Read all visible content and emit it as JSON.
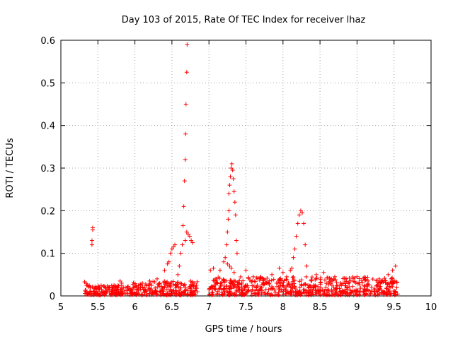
{
  "chart_data": {
    "type": "scatter",
    "title": "Day 103 of 2015, Rate Of TEC Index for receiver lhaz",
    "xlabel": "GPS time / hours",
    "ylabel": "ROTI / TECUs",
    "xlim": [
      5,
      10
    ],
    "ylim": [
      0,
      0.6
    ],
    "grid": true,
    "marker": "plus",
    "marker_color": "#ff0000",
    "x_ticks": [
      "5",
      "5.5",
      "6",
      "6.5",
      "7",
      "7.5",
      "8",
      "8.5",
      "9",
      "9.5",
      "10"
    ],
    "y_ticks": [
      "0",
      "0.1",
      "0.2",
      "0.3",
      "0.4",
      "0.5",
      "0.6"
    ],
    "features": [
      {
        "name": "spike",
        "x": 5.42,
        "values": [
          0.12,
          0.13,
          0.155,
          0.16
        ]
      },
      {
        "name": "spike",
        "x": 6.7,
        "values": [
          0.21,
          0.27,
          0.32,
          0.38,
          0.45,
          0.525,
          0.59
        ]
      },
      {
        "name": "peak",
        "x": 6.5,
        "values": [
          0.08,
          0.1,
          0.115
        ]
      },
      {
        "name": "peak",
        "x": 6.72,
        "values": [
          0.13,
          0.145,
          0.15,
          0.14
        ]
      },
      {
        "name": "peak",
        "x": 7.3,
        "values": [
          0.15,
          0.2,
          0.24,
          0.27,
          0.3,
          0.31
        ]
      },
      {
        "name": "peak",
        "x": 8.23,
        "values": [
          0.12,
          0.16,
          0.19,
          0.2
        ]
      }
    ],
    "series": [
      {
        "name": "ROTI",
        "points": [
          [
            5.32,
            0.033
          ],
          [
            5.34,
            0.03
          ],
          [
            5.36,
            0.025
          ],
          [
            5.4,
            0.02
          ],
          [
            5.42,
            0.12
          ],
          [
            5.42,
            0.13
          ],
          [
            5.43,
            0.155
          ],
          [
            5.43,
            0.16
          ],
          [
            5.55,
            0.015
          ],
          [
            5.7,
            0.02
          ],
          [
            5.8,
            0.035
          ],
          [
            5.82,
            0.03
          ],
          [
            6.1,
            0.03
          ],
          [
            6.2,
            0.035
          ],
          [
            6.3,
            0.04
          ],
          [
            6.4,
            0.06
          ],
          [
            6.44,
            0.075
          ],
          [
            6.46,
            0.08
          ],
          [
            6.48,
            0.1
          ],
          [
            6.5,
            0.11
          ],
          [
            6.52,
            0.115
          ],
          [
            6.54,
            0.12
          ],
          [
            6.58,
            0.05
          ],
          [
            6.6,
            0.07
          ],
          [
            6.62,
            0.1
          ],
          [
            6.64,
            0.12
          ],
          [
            6.65,
            0.165
          ],
          [
            6.66,
            0.21
          ],
          [
            6.67,
            0.27
          ],
          [
            6.68,
            0.32
          ],
          [
            6.685,
            0.38
          ],
          [
            6.69,
            0.45
          ],
          [
            6.7,
            0.525
          ],
          [
            6.705,
            0.59
          ],
          [
            6.68,
            0.13
          ],
          [
            6.7,
            0.15
          ],
          [
            6.72,
            0.145
          ],
          [
            6.74,
            0.14
          ],
          [
            6.76,
            0.13
          ],
          [
            6.78,
            0.125
          ],
          [
            6.8,
            0.03
          ],
          [
            6.83,
            0.025
          ],
          [
            7.02,
            0.06
          ],
          [
            7.06,
            0.065
          ],
          [
            7.1,
            0.04
          ],
          [
            7.15,
            0.06
          ],
          [
            7.2,
            0.08
          ],
          [
            7.22,
            0.09
          ],
          [
            7.24,
            0.12
          ],
          [
            7.25,
            0.15
          ],
          [
            7.26,
            0.18
          ],
          [
            7.27,
            0.2
          ],
          [
            7.27,
            0.24
          ],
          [
            7.28,
            0.26
          ],
          [
            7.29,
            0.28
          ],
          [
            7.3,
            0.3
          ],
          [
            7.31,
            0.31
          ],
          [
            7.32,
            0.295
          ],
          [
            7.33,
            0.275
          ],
          [
            7.34,
            0.245
          ],
          [
            7.35,
            0.22
          ],
          [
            7.36,
            0.19
          ],
          [
            7.37,
            0.13
          ],
          [
            7.38,
            0.1
          ],
          [
            7.25,
            0.075
          ],
          [
            7.28,
            0.07
          ],
          [
            7.3,
            0.065
          ],
          [
            7.34,
            0.055
          ],
          [
            7.5,
            0.06
          ],
          [
            7.6,
            0.045
          ],
          [
            7.7,
            0.04
          ],
          [
            7.85,
            0.05
          ],
          [
            7.95,
            0.065
          ],
          [
            8.0,
            0.055
          ],
          [
            8.05,
            0.045
          ],
          [
            8.1,
            0.06
          ],
          [
            8.12,
            0.065
          ],
          [
            8.14,
            0.09
          ],
          [
            8.16,
            0.11
          ],
          [
            8.18,
            0.14
          ],
          [
            8.2,
            0.17
          ],
          [
            8.22,
            0.19
          ],
          [
            8.24,
            0.2
          ],
          [
            8.26,
            0.195
          ],
          [
            8.28,
            0.17
          ],
          [
            8.3,
            0.12
          ],
          [
            8.32,
            0.07
          ],
          [
            8.45,
            0.05
          ],
          [
            8.55,
            0.055
          ],
          [
            8.7,
            0.045
          ],
          [
            8.85,
            0.04
          ],
          [
            9.0,
            0.045
          ],
          [
            9.15,
            0.035
          ],
          [
            9.3,
            0.04
          ],
          [
            9.42,
            0.05
          ],
          [
            9.48,
            0.06
          ],
          [
            9.52,
            0.07
          ]
        ]
      }
    ],
    "noise_bands": [
      {
        "x_range": [
          5.32,
          5.95
        ],
        "y_range": [
          0.002,
          0.025
        ]
      },
      {
        "x_range": [
          5.95,
          6.85
        ],
        "y_range": [
          0.002,
          0.035
        ]
      },
      {
        "x_range": [
          7.0,
          9.55
        ],
        "y_range": [
          0.002,
          0.045
        ]
      }
    ]
  }
}
